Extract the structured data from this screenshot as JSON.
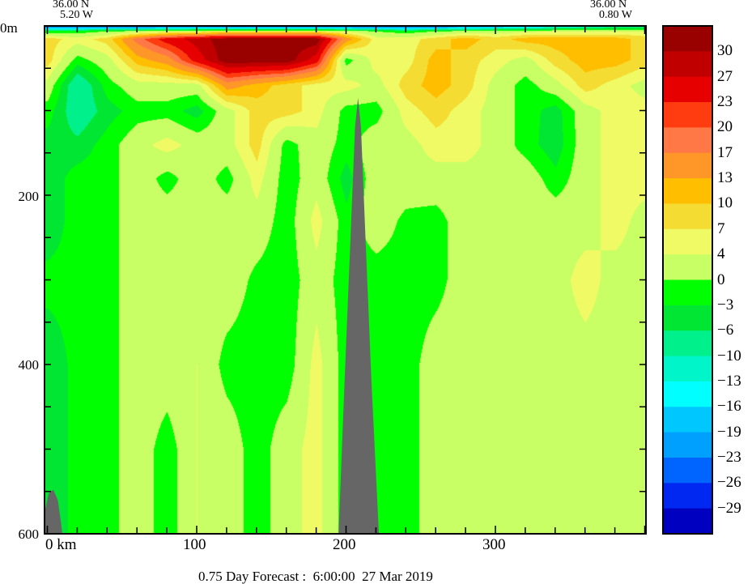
{
  "header": {
    "left_lat": "36.00 N",
    "left_lon": "5.20 W",
    "right_lat": "36.00 N",
    "right_lon": "0.80 W"
  },
  "footer": {
    "title": "0.75 Day Forecast :  6:00:00  27 Mar 2019"
  },
  "chart_data": {
    "type": "heatmap",
    "title": "0.75 Day Forecast :  6:00:00  27 Mar 2019",
    "xlabel": "km",
    "ylabel": "m",
    "xlim": [
      -2,
      401
    ],
    "ylim": [
      600,
      0
    ],
    "x_tick_labels": [
      "0 km",
      "100",
      "200",
      "300"
    ],
    "x_ticks": [
      0,
      100,
      200,
      300
    ],
    "y_tick_labels": [
      "0m",
      "200",
      "400",
      "600"
    ],
    "y_ticks": [
      0,
      200,
      400,
      600
    ],
    "colorbar": {
      "levels": [
        30,
        27,
        23,
        20,
        17,
        13,
        10,
        7,
        4,
        0,
        -3,
        -6,
        -10,
        -13,
        -16,
        -19,
        -23,
        -26,
        -29
      ],
      "labels": [
        "30",
        "27",
        "23",
        "20",
        "17",
        "13",
        "10",
        "7",
        "4",
        "0",
        "-3",
        "-6",
        "-10",
        "-13",
        "-16",
        "-19",
        "-23",
        "-26",
        "-29"
      ],
      "colors": [
        "#990000",
        "#c00000",
        "#e60000",
        "#ff3c0f",
        "#ff7846",
        "#ff9628",
        "#ffbe00",
        "#f5dc32",
        "#f0fa64",
        "#c8ff64",
        "#00ff00",
        "#00e632",
        "#00f08c",
        "#00f5c8",
        "#00ffff",
        "#00c8ff",
        "#00a0ff",
        "#0064ff",
        "#0028f0",
        "#0000c0"
      ]
    },
    "grid": {
      "x_km": [
        0,
        20,
        40,
        60,
        80,
        100,
        120,
        140,
        160,
        180,
        200,
        220,
        240,
        260,
        280,
        300,
        320,
        340,
        360,
        380,
        400
      ],
      "depth_m": [
        0,
        6,
        15,
        40,
        70,
        100,
        140,
        180,
        230,
        300,
        400,
        500,
        600
      ],
      "values": [
        [
          -25,
          -25,
          -25,
          -25,
          -25,
          -25,
          -25,
          -25,
          -25,
          -25,
          -25,
          -25,
          -25,
          -25,
          -22,
          -20,
          -18,
          -15,
          -12,
          -10,
          -10
        ],
        [
          -2,
          -2,
          0,
          2,
          4,
          5,
          6,
          6,
          6,
          6,
          4,
          0,
          -2,
          0,
          2,
          2,
          3,
          4,
          4,
          4,
          4
        ],
        [
          8.5,
          5.5,
          8.5,
          18.5,
          25,
          28.5,
          32,
          32,
          32,
          32,
          15,
          5.5,
          5.5,
          8.5,
          11.5,
          8.5,
          11.5,
          11.5,
          11.5,
          11.5,
          8.5
        ],
        [
          8.5,
          -1.5,
          2.5,
          11.5,
          15,
          25,
          32,
          32,
          32,
          25,
          -1.5,
          5.5,
          5.5,
          11.5,
          8.5,
          5.5,
          2.5,
          8.5,
          11.5,
          11.5,
          8.5
        ],
        [
          2.5,
          -10,
          -1.5,
          2.5,
          2.5,
          2.5,
          15,
          11.5,
          8.5,
          5.5,
          5.5,
          2.5,
          8.5,
          11.5,
          8.5,
          2.5,
          -1.5,
          2.5,
          8.5,
          5.5,
          2.5
        ],
        [
          -1.5,
          -9,
          -4.5,
          -1.5,
          -1.5,
          -4.5,
          2.5,
          8.5,
          8.5,
          5.5,
          -1.5,
          -1.5,
          5.5,
          8.5,
          5.5,
          2.5,
          -1.5,
          -4.5,
          2.5,
          5.5,
          5.5
        ],
        [
          -4.5,
          -5,
          -1.5,
          2.5,
          5.5,
          2.5,
          2.5,
          8.5,
          -1.5,
          2.5,
          -1.5,
          2.5,
          2.5,
          5.5,
          5.5,
          2.5,
          -1.5,
          -5,
          2.5,
          5.5,
          5.5
        ],
        [
          -5,
          -1.5,
          -1.5,
          2.5,
          -1.5,
          2.5,
          -1.5,
          5.5,
          -2,
          2.5,
          -4.5,
          2.5,
          2.5,
          2.5,
          2.5,
          2.5,
          2.5,
          -2,
          2.5,
          5.5,
          5.5
        ],
        [
          -5,
          -1.5,
          -1.5,
          2.5,
          2.5,
          2.5,
          2.5,
          2.5,
          -2,
          5.5,
          -2,
          2.5,
          -1,
          -1.5,
          2.5,
          2.5,
          2.5,
          2.5,
          2.5,
          5.5,
          2.5
        ],
        [
          -2,
          -2,
          -1.5,
          2.5,
          2.5,
          2.5,
          2.5,
          -1,
          -2,
          2.5,
          -2,
          -2,
          -2,
          -1.5,
          2.5,
          2.5,
          2.5,
          2.5,
          5.5,
          2.5,
          2.5
        ],
        [
          -5,
          -2,
          -1.5,
          2.5,
          2.5,
          4,
          -1.5,
          -2,
          -2,
          5.5,
          -2,
          -2,
          -2,
          2.5,
          2.5,
          2.5,
          2.5,
          2.5,
          2.5,
          2.5,
          2.5
        ],
        [
          -5,
          -2,
          -1.5,
          2.5,
          -2,
          4,
          2.5,
          -2,
          2.5,
          5.5,
          -2,
          -2,
          -2,
          2.5,
          2.5,
          2.5,
          2.5,
          2.5,
          2.5,
          2.5,
          2.5
        ],
        [
          -5,
          -2,
          -1.5,
          2.5,
          -2,
          4,
          2.5,
          -2,
          2.5,
          5.5,
          -2,
          -2,
          -2,
          2.5,
          2.5,
          2.5,
          2.5,
          2.5,
          2.5,
          2.5,
          2.5
        ]
      ]
    },
    "topography": [
      {
        "name": "left-slope",
        "color": "#666666",
        "points": [
          [
            -2,
            600
          ],
          [
            -2,
            575
          ],
          [
            1,
            552
          ],
          [
            4,
            548
          ],
          [
            7,
            560
          ],
          [
            9,
            585
          ],
          [
            10,
            600
          ]
        ]
      },
      {
        "name": "seamount",
        "color": "#666666",
        "points": [
          [
            195,
            600
          ],
          [
            199,
            420
          ],
          [
            203,
            250
          ],
          [
            206,
            120
          ],
          [
            208,
            85
          ],
          [
            210,
            120
          ],
          [
            213,
            250
          ],
          [
            217,
            420
          ],
          [
            222,
            600
          ]
        ]
      }
    ]
  }
}
